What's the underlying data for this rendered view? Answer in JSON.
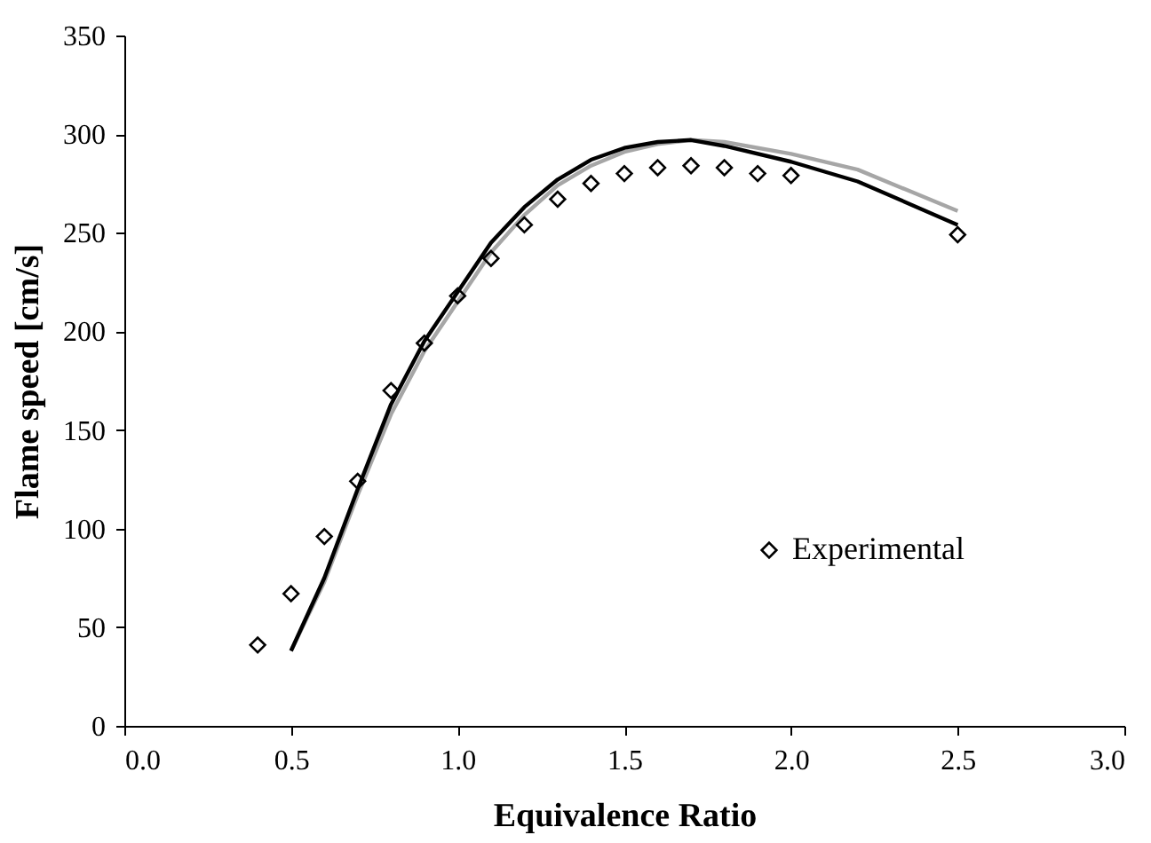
{
  "chart_data": {
    "type": "line",
    "xlabel": "Equivalence Ratio",
    "ylabel": "Flame speed [cm/s]",
    "xlim": [
      0,
      3
    ],
    "xticks": [
      {
        "value": 0,
        "label": "0.0"
      },
      {
        "value": 0.5,
        "label": "0.5"
      },
      {
        "value": 1,
        "label": "1.0"
      },
      {
        "value": 1.5,
        "label": "1.5"
      },
      {
        "value": 2,
        "label": "2.0"
      },
      {
        "value": 2.5,
        "label": "2.5"
      },
      {
        "value": 3,
        "label": "3.0"
      }
    ],
    "ylim": [
      0,
      350
    ],
    "yticks": [
      0,
      50,
      100,
      150,
      200,
      250,
      300,
      350
    ],
    "grid": false,
    "legend": "bottom right",
    "series": [
      {
        "name": "Experimental",
        "type": "scatter",
        "marker": "diamond",
        "color": "#000000",
        "x": [
          0.4,
          0.5,
          0.6,
          0.7,
          0.8,
          0.9,
          1.0,
          1.1,
          1.2,
          1.3,
          1.4,
          1.5,
          1.6,
          1.7,
          1.8,
          1.9,
          2.0,
          2.5
        ],
        "values": [
          41,
          67,
          96,
          124,
          170,
          194,
          218,
          237,
          254,
          267,
          275,
          280,
          283,
          284,
          283,
          280,
          279,
          249
        ]
      },
      {
        "color": "#a6a6a6",
        "x": [
          0.5,
          0.6,
          0.7,
          0.8,
          0.9,
          1.0,
          1.1,
          1.2,
          1.3,
          1.4,
          1.5,
          1.6,
          1.7,
          1.8,
          2.0,
          2.2,
          2.5
        ],
        "values": [
          38,
          73,
          117,
          158,
          190,
          215,
          240,
          259,
          274,
          284,
          291,
          295,
          297,
          296,
          290,
          282,
          261
        ]
      },
      {
        "color": "#000000",
        "x": [
          0.5,
          0.6,
          0.7,
          0.8,
          0.9,
          1.0,
          1.1,
          1.2,
          1.3,
          1.4,
          1.5,
          1.6,
          1.7,
          1.8,
          2.0,
          2.2,
          2.5
        ],
        "values": [
          38,
          75,
          120,
          163,
          195,
          220,
          245,
          263,
          277,
          287,
          293,
          296,
          297,
          294,
          286,
          276,
          254
        ]
      }
    ]
  }
}
